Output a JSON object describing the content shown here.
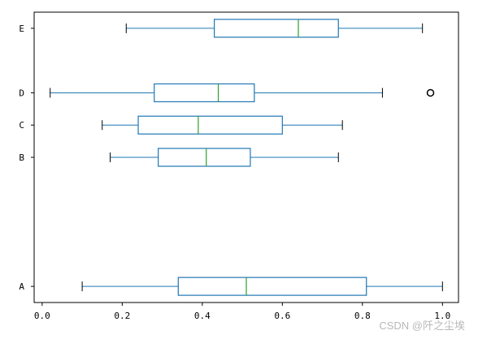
{
  "chart_data": {
    "type": "boxplot",
    "orientation": "horizontal",
    "title": "",
    "xlabel": "",
    "ylabel": "",
    "xlim": [
      -0.02,
      1.04
    ],
    "xticks": [
      0.0,
      0.2,
      0.4,
      0.6,
      0.8,
      1.0
    ],
    "xtick_labels": [
      "0.0",
      "0.2",
      "0.4",
      "0.6",
      "0.8",
      "1.0"
    ],
    "y_positions": {
      "A": 1,
      "B": 3,
      "C": 3.5,
      "D": 4,
      "E": 5
    },
    "ylim": [
      0.75,
      5.25
    ],
    "grid": false,
    "colors": {
      "box": "#1f77b4",
      "median": "#2ca02c",
      "whisker": "#1f77b4",
      "cap": "#000000",
      "flier": "#000000",
      "axes": "#000000"
    },
    "series": [
      {
        "name": "A",
        "whisker_low": 0.1,
        "q1": 0.34,
        "median": 0.51,
        "q3": 0.81,
        "whisker_high": 1.0,
        "fliers": []
      },
      {
        "name": "B",
        "whisker_low": 0.17,
        "q1": 0.29,
        "median": 0.41,
        "q3": 0.52,
        "whisker_high": 0.74,
        "fliers": []
      },
      {
        "name": "C",
        "whisker_low": 0.15,
        "q1": 0.24,
        "median": 0.39,
        "q3": 0.6,
        "whisker_high": 0.75,
        "fliers": []
      },
      {
        "name": "D",
        "whisker_low": 0.02,
        "q1": 0.28,
        "median": 0.44,
        "q3": 0.53,
        "whisker_high": 0.85,
        "fliers": [
          0.97
        ]
      },
      {
        "name": "E",
        "whisker_low": 0.21,
        "q1": 0.43,
        "median": 0.64,
        "q3": 0.74,
        "whisker_high": 0.95,
        "fliers": []
      }
    ]
  },
  "watermark": "CSDN @阡之尘埃"
}
